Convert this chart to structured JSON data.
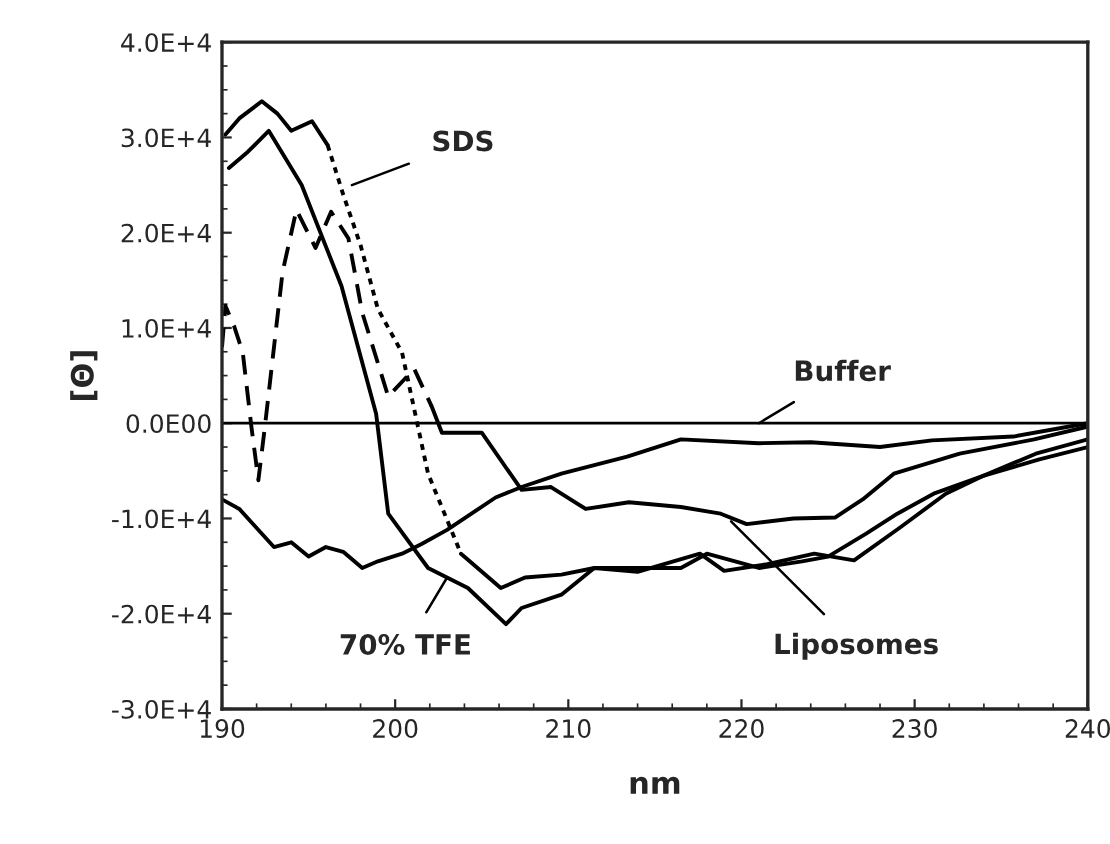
{
  "chart_data": {
    "type": "line",
    "xlabel": "nm",
    "ylabel": "[Θ]",
    "xlim": [
      190,
      240
    ],
    "xticks": [
      190,
      200,
      210,
      220,
      230,
      240
    ],
    "ylim": [
      -30000,
      40000
    ],
    "yticks": [
      {
        "value": -30000,
        "label": "-3.0E+4"
      },
      {
        "value": -20000,
        "label": "-2.0E+4"
      },
      {
        "value": -10000,
        "label": "-1.0E+4"
      },
      {
        "value": 0,
        "label": "0.0E00"
      },
      {
        "value": 10000,
        "label": "1.0E+4"
      },
      {
        "value": 20000,
        "label": "2.0E+4"
      },
      {
        "value": 30000,
        "label": "3.0E+4"
      },
      {
        "value": 40000,
        "label": "4.0E+4"
      }
    ],
    "grid": false,
    "legend": false,
    "ref_lines": [
      {
        "axis": "y",
        "value": 0,
        "label": null,
        "color": "#000000",
        "line_style": "solid"
      }
    ],
    "series": [
      {
        "color": "#000000",
        "line_style": "solid",
        "x": [
          190.2,
          191,
          192.3,
          193.2,
          194,
          195.2,
          196.1
        ],
        "values": [
          30300,
          32000,
          33800,
          32500,
          30700,
          31700,
          29200
        ]
      },
      {
        "color": "#000000",
        "line_style": "dotted",
        "x": [
          196.1,
          197,
          198,
          199,
          200.4,
          201.9,
          203.8
        ],
        "values": [
          29200,
          24000,
          18700,
          12000,
          7400,
          -5300,
          -13700
        ]
      },
      {
        "color": "#000000",
        "line_style": "solid",
        "x": [
          203.8,
          206.1,
          207.5,
          209.6,
          211.5,
          214,
          217.6,
          219,
          221.5,
          224.2,
          226.5,
          229.2,
          231.8,
          234,
          237,
          240
        ],
        "values": [
          -13700,
          -17300,
          -16200,
          -15900,
          -15200,
          -15600,
          -13700,
          -15500,
          -14800,
          -13700,
          -14400,
          -10900,
          -7400,
          -5500,
          -3200,
          -1700
        ]
      },
      {
        "color": "#000000",
        "line_style": "solid",
        "x": [
          190.4,
          191.5,
          192.7,
          194.6,
          196.9,
          198.9,
          199.6,
          201.9,
          204.2,
          206.4,
          207.3,
          209.6,
          211.5,
          214,
          216.5,
          218,
          221,
          223.5,
          225,
          227.2,
          229,
          231.1,
          234,
          237.2,
          240
        ],
        "values": [
          26800,
          28500,
          30700,
          25000,
          14400,
          1000,
          -9500,
          -15200,
          -17300,
          -21100,
          -19400,
          -18000,
          -15200,
          -15200,
          -15200,
          -13700,
          -15200,
          -14500,
          -14000,
          -11600,
          -9500,
          -7400,
          -5500,
          -3800,
          -2500
        ]
      },
      {
        "color": "#000000",
        "line_style": "dashed",
        "x": [
          190,
          190.2,
          190.7,
          191.2,
          191.7,
          192.1,
          192.5,
          193.5,
          194.3,
          195.4,
          196.3,
          197.3,
          198.1,
          199.6,
          201.1,
          202.1
        ],
        "values": [
          8000,
          12300,
          10200,
          7400,
          -400,
          -6000,
          0,
          15900,
          22400,
          18400,
          22200,
          19400,
          11600,
          2800,
          5700,
          1800
        ]
      },
      {
        "color": "#000000",
        "line_style": "solid",
        "x": [
          202.1,
          202.7,
          205,
          207.3,
          209,
          211,
          213.5,
          216.5,
          218.8,
          220.3,
          223,
          225.4,
          227,
          228.8,
          232.6,
          236.9,
          239.9
        ],
        "values": [
          1800,
          -1000,
          -1000,
          -7000,
          -6700,
          -9000,
          -8300,
          -8800,
          -9500,
          -10600,
          -10000,
          -9900,
          -8000,
          -5300,
          -3200,
          -1700,
          -400
        ]
      },
      {
        "color": "#000000",
        "line_style": "solid",
        "x": [
          190,
          191,
          192,
          193,
          194,
          195,
          196,
          197,
          198.1,
          199,
          200.4,
          201.5,
          203,
          205.8,
          207.3,
          209.6,
          213.4,
          216.5,
          221,
          224,
          228,
          231,
          235.7,
          240
        ],
        "values": [
          -8000,
          -9000,
          -11000,
          -13000,
          -12500,
          -14000,
          -13000,
          -13500,
          -15200,
          -14500,
          -13700,
          -12700,
          -11200,
          -7800,
          -6700,
          -5300,
          -3500,
          -1700,
          -2100,
          -2000,
          -2500,
          -1800,
          -1400,
          0
        ]
      }
    ],
    "annotations": [
      {
        "text": "SDS",
        "x": 197.5,
        "y": 25000
      },
      {
        "text": "Buffer",
        "x": 221,
        "y": 0
      },
      {
        "text": "70% TFE",
        "x": 203,
        "y": -16200
      },
      {
        "text": "Liposomes",
        "x": 219.4,
        "y": -10300
      }
    ]
  }
}
